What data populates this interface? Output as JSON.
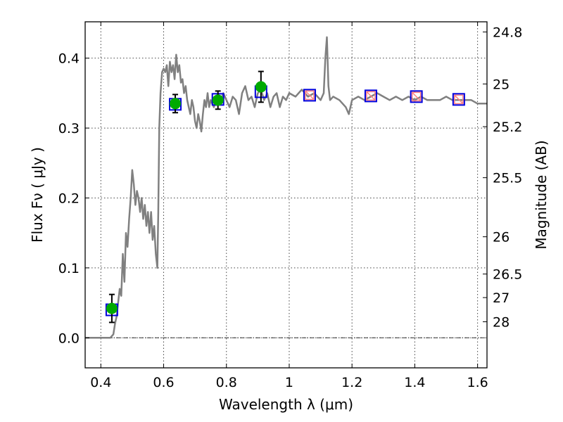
{
  "chart_data": {
    "type": "line",
    "title": "",
    "xlabel": "Wavelength  λ (μm)",
    "ylabel": "Flux  Fν  ( μJy )",
    "y2label": "Magnitude (AB)",
    "xlim": [
      0.35,
      1.63
    ],
    "ylim": [
      -0.043,
      0.452
    ],
    "x_ticks": [
      0.4,
      0.6,
      0.8,
      1.0,
      1.2,
      1.4,
      1.6
    ],
    "x_tick_labels": [
      "0.4",
      "0.6",
      "0.8",
      "1",
      "1.2",
      "1.4",
      "1.6"
    ],
    "y_ticks": [
      0.0,
      0.1,
      0.2,
      0.3,
      0.4
    ],
    "y_tick_labels": [
      "0.0",
      "0.1",
      "0.2",
      "0.3",
      "0.4"
    ],
    "y2_ticks": [
      {
        "flux": 0.4375,
        "label": "24.8"
      },
      {
        "flux": 0.3631,
        "label": "25"
      },
      {
        "flux": 0.302,
        "label": "25.2"
      },
      {
        "flux": 0.229,
        "label": "25.5"
      },
      {
        "flux": 0.1445,
        "label": "26"
      },
      {
        "flux": 0.0912,
        "label": "26.5"
      },
      {
        "flux": 0.0575,
        "label": "27"
      },
      {
        "flux": 0.0229,
        "label": "28"
      }
    ],
    "grid": true,
    "zero_line": true,
    "series": [
      {
        "kind": "model_spectrum",
        "color": "#808080",
        "x": [
          0.35,
          0.43,
          0.44,
          0.445,
          0.45,
          0.455,
          0.46,
          0.465,
          0.47,
          0.475,
          0.48,
          0.485,
          0.49,
          0.495,
          0.5,
          0.505,
          0.51,
          0.515,
          0.52,
          0.525,
          0.53,
          0.535,
          0.54,
          0.545,
          0.55,
          0.555,
          0.56,
          0.565,
          0.57,
          0.575,
          0.58,
          0.583,
          0.586,
          0.59,
          0.595,
          0.6,
          0.605,
          0.61,
          0.615,
          0.62,
          0.625,
          0.63,
          0.635,
          0.64,
          0.645,
          0.65,
          0.655,
          0.66,
          0.665,
          0.67,
          0.675,
          0.68,
          0.685,
          0.69,
          0.695,
          0.7,
          0.705,
          0.71,
          0.715,
          0.72,
          0.725,
          0.73,
          0.735,
          0.74,
          0.745,
          0.75,
          0.76,
          0.77,
          0.78,
          0.79,
          0.8,
          0.81,
          0.82,
          0.83,
          0.84,
          0.85,
          0.86,
          0.87,
          0.88,
          0.89,
          0.9,
          0.91,
          0.92,
          0.93,
          0.94,
          0.95,
          0.96,
          0.97,
          0.98,
          0.99,
          1.0,
          1.02,
          1.04,
          1.06,
          1.08,
          1.1,
          1.11,
          1.115,
          1.12,
          1.125,
          1.13,
          1.14,
          1.16,
          1.18,
          1.19,
          1.2,
          1.22,
          1.24,
          1.26,
          1.28,
          1.3,
          1.32,
          1.34,
          1.36,
          1.38,
          1.4,
          1.42,
          1.44,
          1.46,
          1.48,
          1.5,
          1.52,
          1.54,
          1.56,
          1.58,
          1.6,
          1.63
        ],
        "y": [
          0.0,
          0.0,
          0.005,
          0.02,
          0.03,
          0.05,
          0.07,
          0.06,
          0.12,
          0.08,
          0.15,
          0.13,
          0.17,
          0.2,
          0.24,
          0.22,
          0.19,
          0.21,
          0.2,
          0.18,
          0.2,
          0.17,
          0.19,
          0.16,
          0.18,
          0.15,
          0.18,
          0.14,
          0.16,
          0.12,
          0.1,
          0.18,
          0.3,
          0.35,
          0.38,
          0.385,
          0.38,
          0.39,
          0.36,
          0.395,
          0.38,
          0.39,
          0.37,
          0.405,
          0.38,
          0.39,
          0.365,
          0.37,
          0.35,
          0.36,
          0.34,
          0.33,
          0.32,
          0.34,
          0.33,
          0.31,
          0.3,
          0.32,
          0.31,
          0.295,
          0.32,
          0.34,
          0.33,
          0.35,
          0.33,
          0.34,
          0.33,
          0.345,
          0.335,
          0.35,
          0.34,
          0.33,
          0.345,
          0.34,
          0.32,
          0.35,
          0.36,
          0.34,
          0.345,
          0.33,
          0.35,
          0.355,
          0.34,
          0.35,
          0.33,
          0.345,
          0.35,
          0.33,
          0.345,
          0.34,
          0.35,
          0.345,
          0.355,
          0.345,
          0.35,
          0.34,
          0.35,
          0.4,
          0.43,
          0.36,
          0.34,
          0.345,
          0.34,
          0.33,
          0.32,
          0.34,
          0.345,
          0.34,
          0.345,
          0.35,
          0.345,
          0.34,
          0.345,
          0.34,
          0.345,
          0.34,
          0.345,
          0.34,
          0.34,
          0.34,
          0.345,
          0.34,
          0.34,
          0.34,
          0.34,
          0.335,
          0.335
        ]
      },
      {
        "kind": "photometry_points",
        "color": "#00aa00",
        "x": [
          0.435,
          0.637,
          0.773,
          0.91
        ],
        "y": [
          0.042,
          0.335,
          0.34,
          0.359
        ],
        "yerr": [
          0.02,
          0.013,
          0.013,
          0.022
        ]
      },
      {
        "kind": "model_band_fluxes",
        "color": "#0000dd",
        "x": [
          0.435,
          0.637,
          0.773,
          0.91,
          1.065,
          1.26,
          1.405,
          1.54
        ],
        "y": [
          0.04,
          0.334,
          0.341,
          0.352,
          0.347,
          0.346,
          0.345,
          0.341
        ]
      },
      {
        "kind": "synthetic_band_marks",
        "color": "#ff8080",
        "x": [
          1.065,
          1.26,
          1.405,
          1.54
        ],
        "y": [
          0.347,
          0.346,
          0.345,
          0.341
        ]
      }
    ]
  }
}
